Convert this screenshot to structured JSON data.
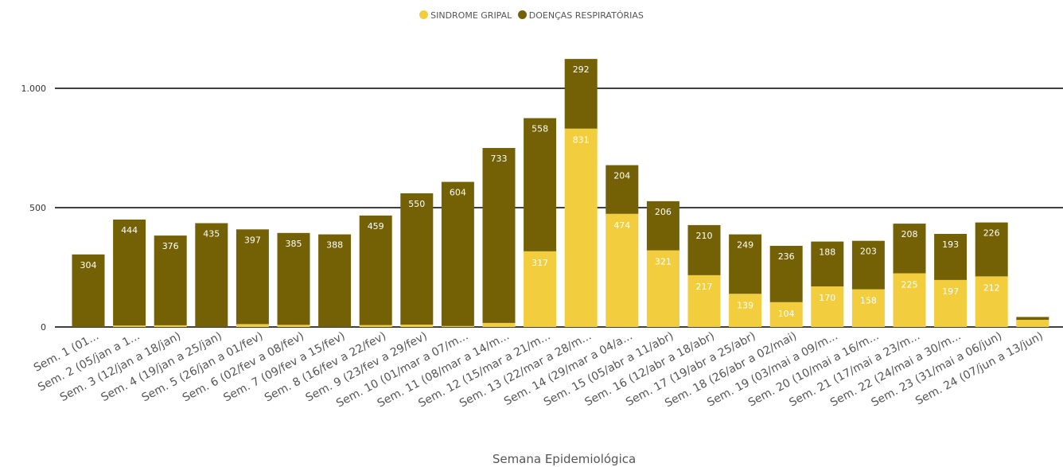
{
  "chart_data": {
    "type": "bar",
    "stacked": true,
    "xlabel": "Semana Epidemiológica",
    "ylabel": "",
    "ylim": [
      0,
      1150
    ],
    "yticks": [
      0,
      500,
      1000
    ],
    "ytick_labels": [
      "0",
      "500",
      "1.000"
    ],
    "legend_position": "top-center",
    "categories": [
      "Sem. 1 (01...",
      "Sem. 2 (05/jan a 1...",
      "Sem. 3 (12/jan a 18/jan)",
      "Sem. 4 (19/jan a 25/jan)",
      "Sem. 5 (26/jan a 01/fev)",
      "Sem. 6 (02/fev a 08/fev)",
      "Sem. 7 (09/fev a 15/fev)",
      "Sem. 8 (16/fev a 22/fev)",
      "Sem. 9 (23/fev a 29/fev)",
      "Sem. 10 (01/mar a 07/m...",
      "Sem. 11 (08/mar a 14/m...",
      "Sem. 12 (15/mar a 21/m...",
      "Sem. 13 (22/mar a 28/m...",
      "Sem. 14 (29/mar a 04/a...",
      "Sem. 15 (05/abr a 11/abr)",
      "Sem. 16 (12/abr a 18/abr)",
      "Sem. 17 (19/abr a 25/abr)",
      "Sem. 18 (26/abr a 02/mai)",
      "Sem. 19 (03/mai a 09/m...",
      "Sem. 20 (10/mai a 16/m...",
      "Sem. 21 (17/mai a 23/m...",
      "Sem. 22 (24/mai a 30/m...",
      "Sem. 23 (31/mai a 06/jun)",
      "Sem. 24 (07/jun a 13/jun)"
    ],
    "series": [
      {
        "name": "SINDROME GRIPAL",
        "color": "#F2CE3E",
        "values": [
          0,
          6,
          7,
          0,
          12,
          9,
          0,
          8,
          10,
          4,
          17,
          317,
          831,
          474,
          321,
          217,
          139,
          104,
          170,
          158,
          225,
          197,
          212,
          30
        ],
        "labels": [
          "",
          "",
          "",
          "",
          "",
          "",
          "",
          "",
          "",
          "",
          "",
          "317",
          "831",
          "474",
          "321",
          "217",
          "139",
          "104",
          "170",
          "158",
          "225",
          "197",
          "212",
          ""
        ]
      },
      {
        "name": "DOENÇAS RESPIRATÓRIAS",
        "color": "#746106",
        "values": [
          304,
          444,
          376,
          435,
          397,
          385,
          388,
          459,
          550,
          604,
          733,
          558,
          292,
          204,
          206,
          210,
          249,
          236,
          188,
          203,
          208,
          193,
          226,
          12
        ],
        "labels": [
          "304",
          "444",
          "376",
          "435",
          "397",
          "385",
          "388",
          "459",
          "550",
          "604",
          "733",
          "558",
          "292",
          "204",
          "206",
          "210",
          "249",
          "236",
          "188",
          "203",
          "208",
          "193",
          "226",
          ""
        ]
      }
    ]
  }
}
